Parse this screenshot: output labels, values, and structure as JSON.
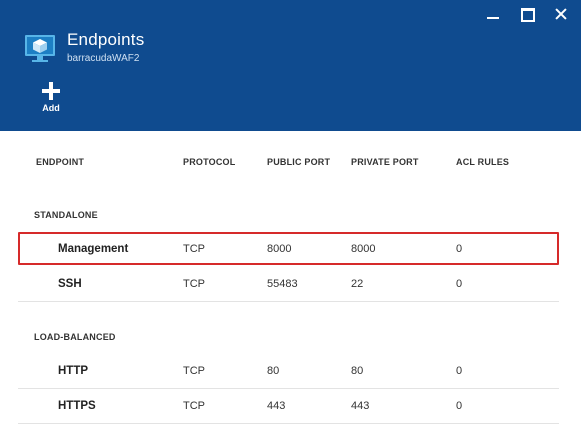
{
  "header": {
    "title": "Endpoints",
    "subtitle": "barracudaWAF2",
    "add_label": "Add",
    "bg_color": "#0f4b8f"
  },
  "window_controls": {
    "icons": [
      "minimize-icon",
      "maximize-icon",
      "close-icon"
    ]
  },
  "table": {
    "columns": [
      "ENDPOINT",
      "PROTOCOL",
      "PUBLIC PORT",
      "PRIVATE PORT",
      "ACL RULES"
    ],
    "sections": [
      {
        "title": "STANDALONE",
        "rows": [
          {
            "endpoint": "Management",
            "protocol": "TCP",
            "public_port": "8000",
            "private_port": "8000",
            "acl_rules": "0",
            "selected": true
          },
          {
            "endpoint": "SSH",
            "protocol": "TCP",
            "public_port": "55483",
            "private_port": "22",
            "acl_rules": "0"
          }
        ]
      },
      {
        "title": "LOAD-BALANCED",
        "rows": [
          {
            "endpoint": "HTTP",
            "protocol": "TCP",
            "public_port": "80",
            "private_port": "80",
            "acl_rules": "0"
          },
          {
            "endpoint": "HTTPS",
            "protocol": "TCP",
            "public_port": "443",
            "private_port": "443",
            "acl_rules": "0"
          }
        ]
      }
    ]
  },
  "colors": {
    "selection_border": "#d62a2a",
    "row_divider": "#e3e3e3"
  }
}
